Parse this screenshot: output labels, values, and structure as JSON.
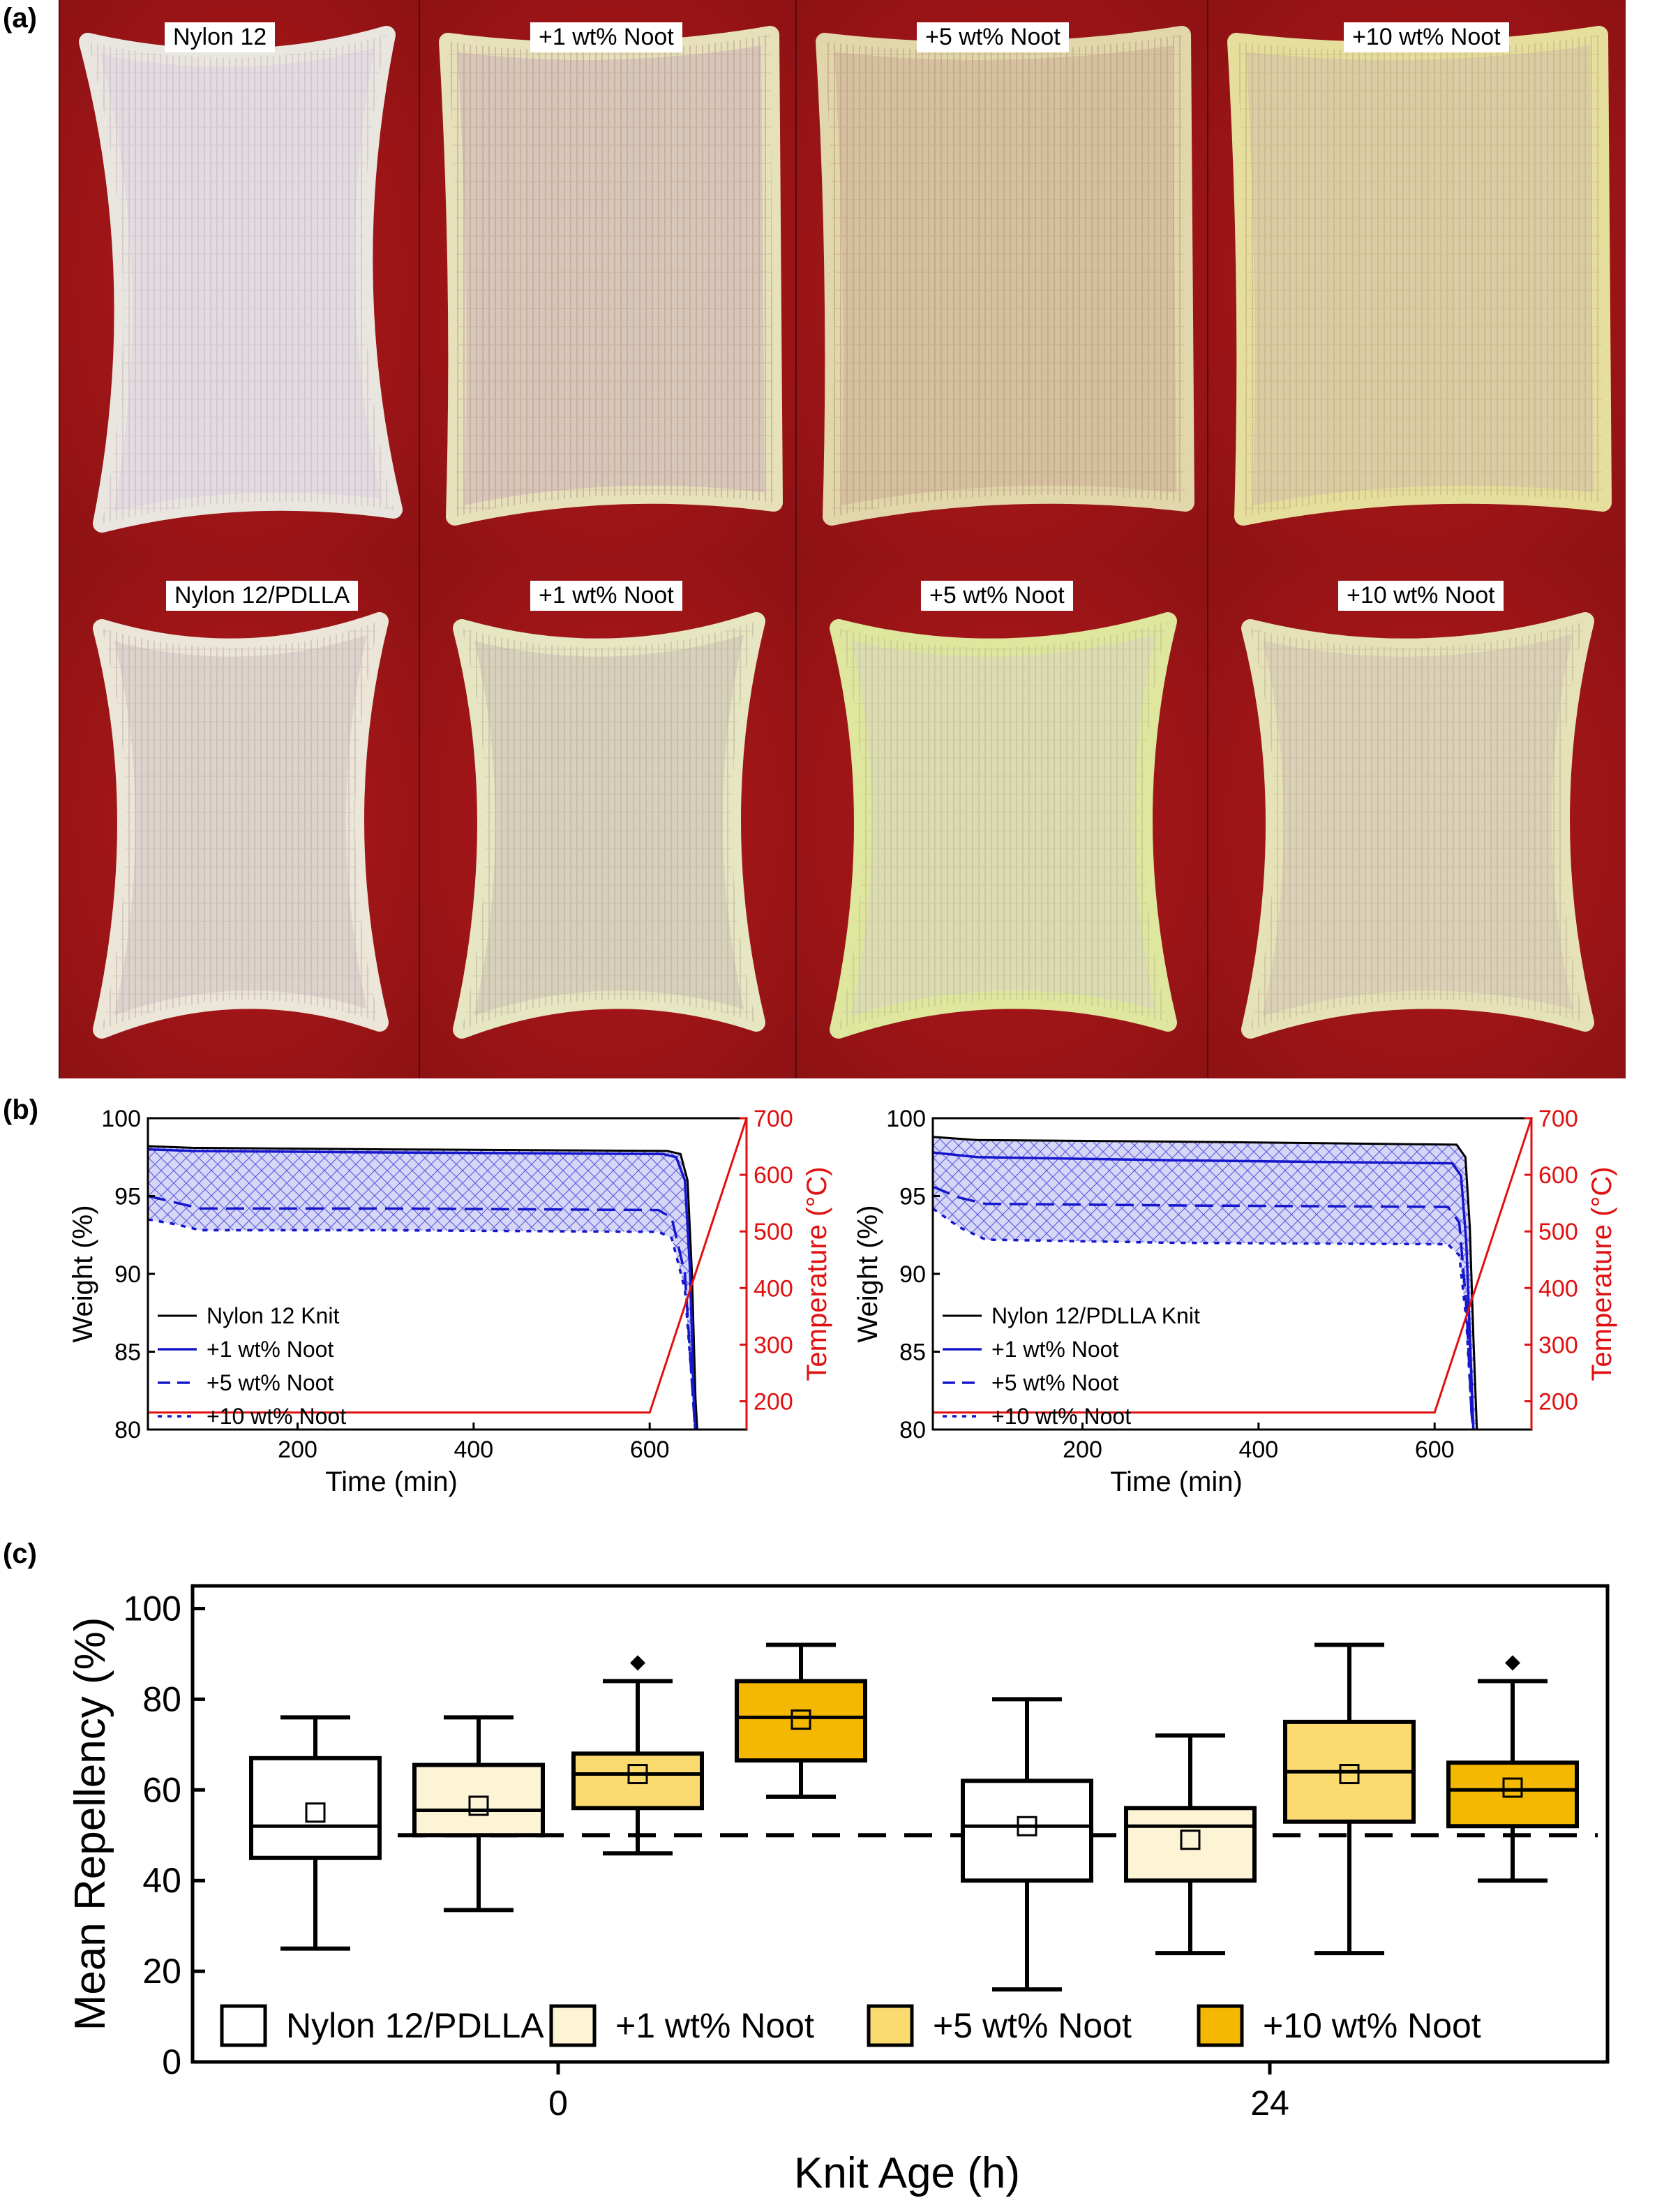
{
  "panel_labels": {
    "a": "(a)",
    "b": "(b)",
    "c": "(c)"
  },
  "photos": {
    "top_row": [
      {
        "label": "Nylon 12",
        "shape": "hourglass",
        "fabric": "#e2dbe0",
        "grid": "#c8b9c4",
        "edge": "#e9e6e0"
      },
      {
        "label": "+1 wt% Noot",
        "shape": "rect",
        "fabric": "#d8c6b8",
        "grid": "#b89f90",
        "edge": "#e6e1bb"
      },
      {
        "label": "+5 wt% Noot",
        "shape": "rect",
        "fabric": "#d5c0a0",
        "grid": "#b89d7c",
        "edge": "#e2d6ab"
      },
      {
        "label": "+10 wt% Noot",
        "shape": "rect",
        "fabric": "#dccca3",
        "grid": "#c4b084",
        "edge": "#e6de9c"
      }
    ],
    "bottom_row": [
      {
        "label": "Nylon 12/PDLLA",
        "shape": "bone",
        "fabric": "#ddd2cc",
        "grid": "#bfb1ac",
        "edge": "#ece6d8"
      },
      {
        "label": "+1 wt% Noot",
        "shape": "bone",
        "fabric": "#d7d0ba",
        "grid": "#b8b29d",
        "edge": "#e6e6c3"
      },
      {
        "label": "+5 wt% Noot",
        "shape": "bone",
        "fabric": "#dcdcb2",
        "grid": "#bcbd92",
        "edge": "#dfe69e"
      },
      {
        "label": "+10 wt% Noot",
        "shape": "bone",
        "fabric": "#dad1b6",
        "grid": "#bdb398",
        "edge": "#e6e2b8"
      }
    ],
    "background_color": "#8e1214"
  },
  "chart_data": [
    {
      "type": "line",
      "panel": "b-left",
      "xlabel": "Time (min)",
      "ylabel": "Weight (%)",
      "y2label": "Temperature (°C)",
      "xlim": [
        30,
        710
      ],
      "ylim": [
        80,
        100
      ],
      "y2lim": [
        150,
        700
      ],
      "xticks": [
        200,
        400,
        600
      ],
      "yticks": [
        80,
        85,
        90,
        95,
        100
      ],
      "y2ticks": [
        200,
        300,
        400,
        500,
        600,
        700
      ],
      "legend": [
        "Nylon 12 Knit",
        "+1 wt% Noot",
        "+5 wt% Noot",
        "+10 wt% Noot"
      ],
      "series": [
        {
          "name": "Nylon 12 Knit",
          "style": "solid-black",
          "x": [
            30,
            80,
            300,
            620,
            635,
            643,
            648,
            652,
            656
          ],
          "y": [
            98.2,
            98.1,
            98.0,
            97.9,
            97.7,
            96,
            90,
            82,
            78
          ]
        },
        {
          "name": "+1 wt% Noot",
          "style": "solid-blue",
          "x": [
            30,
            80,
            300,
            615,
            630,
            640,
            646,
            650,
            654
          ],
          "y": [
            98.0,
            97.9,
            97.8,
            97.7,
            97.5,
            96,
            90,
            82,
            78
          ]
        },
        {
          "name": "+5 wt% Noot",
          "style": "dash-blue",
          "x": [
            30,
            60,
            90,
            300,
            610,
            625,
            640,
            648,
            654
          ],
          "y": [
            95.0,
            94.6,
            94.2,
            94.2,
            94.1,
            93.6,
            90,
            83,
            78
          ]
        },
        {
          "name": "+10 wt% Noot",
          "style": "dot-blue",
          "x": [
            30,
            60,
            90,
            300,
            610,
            625,
            640,
            648,
            654
          ],
          "y": [
            93.5,
            93.2,
            92.8,
            92.8,
            92.7,
            92.3,
            89,
            83,
            78
          ]
        },
        {
          "name": "Temperature",
          "style": "red",
          "axis": "y2",
          "x": [
            30,
            600,
            710
          ],
          "y": [
            180,
            180,
            700
          ]
        }
      ]
    },
    {
      "type": "line",
      "panel": "b-right",
      "xlabel": "Time (min)",
      "ylabel": "Weight (%)",
      "y2label": "Temperature (°C)",
      "xlim": [
        30,
        710
      ],
      "ylim": [
        80,
        100
      ],
      "y2lim": [
        150,
        700
      ],
      "xticks": [
        200,
        400,
        600
      ],
      "yticks": [
        80,
        85,
        90,
        95,
        100
      ],
      "y2ticks": [
        200,
        300,
        400,
        500,
        600,
        700
      ],
      "legend": [
        "Nylon 12/PDLLA Knit",
        "+1 wt% Noot",
        "+5 wt% Noot",
        "+10 wt% Noot"
      ],
      "series": [
        {
          "name": "Nylon 12/PDLLA Knit",
          "style": "solid-black",
          "x": [
            30,
            80,
            300,
            625,
            635,
            640,
            644,
            648,
            652
          ],
          "y": [
            98.8,
            98.6,
            98.5,
            98.3,
            97.5,
            93,
            86,
            80,
            78
          ]
        },
        {
          "name": "+1 wt% Noot",
          "style": "solid-blue",
          "x": [
            30,
            80,
            300,
            620,
            630,
            636,
            640,
            644,
            648
          ],
          "y": [
            97.8,
            97.5,
            97.3,
            97.1,
            96.3,
            92,
            86,
            80,
            78
          ]
        },
        {
          "name": "+5 wt% Noot",
          "style": "dash-blue",
          "x": [
            30,
            60,
            90,
            300,
            615,
            628,
            636,
            642,
            648
          ],
          "y": [
            95.6,
            94.9,
            94.5,
            94.4,
            94.3,
            93.3,
            88,
            81,
            78
          ]
        },
        {
          "name": "+10 wt% Noot",
          "style": "dot-blue",
          "x": [
            30,
            60,
            90,
            300,
            615,
            628,
            636,
            642,
            648
          ],
          "y": [
            94.2,
            93.0,
            92.2,
            92.0,
            91.9,
            91.2,
            87,
            81,
            78
          ]
        },
        {
          "name": "Temperature",
          "style": "red",
          "axis": "y2",
          "x": [
            30,
            600,
            710
          ],
          "y": [
            180,
            180,
            700
          ]
        }
      ]
    },
    {
      "type": "box",
      "panel": "c",
      "xlabel": "Knit Age (h)",
      "ylabel": "Mean Repellency (%)",
      "ylim": [
        0,
        105
      ],
      "yticks": [
        0,
        20,
        40,
        60,
        80,
        100
      ],
      "categories": [
        "0",
        "24"
      ],
      "reference_line": 50,
      "legend": [
        "Nylon 12/PDLLA",
        "+1 wt% Noot",
        "+5 wt% Noot",
        "+10 wt% Noot"
      ],
      "series_colors": [
        "#ffffff",
        "#fdf4d6",
        "#fbdb6f",
        "#f5b800"
      ],
      "groups": [
        {
          "category": "0",
          "boxes": [
            {
              "name": "Nylon 12/PDLLA",
              "whisker_low": 25,
              "q1": 45,
              "median": 52,
              "q3": 67,
              "whisker_high": 76,
              "mean": 55,
              "outliers": []
            },
            {
              "name": "+1 wt% Noot",
              "whisker_low": 33.5,
              "q1": 50,
              "median": 55.5,
              "q3": 65.5,
              "whisker_high": 76,
              "mean": 56.5,
              "outliers": []
            },
            {
              "name": "+5 wt% Noot",
              "whisker_low": 46,
              "q1": 56,
              "median": 63.5,
              "q3": 68,
              "whisker_high": 84,
              "mean": 63.5,
              "outliers": [
                88
              ]
            },
            {
              "name": "+10 wt% Noot",
              "whisker_low": 58.5,
              "q1": 66.5,
              "median": 76,
              "q3": 84,
              "whisker_high": 92,
              "mean": 75.5,
              "outliers": []
            }
          ]
        },
        {
          "category": "24",
          "boxes": [
            {
              "name": "Nylon 12/PDLLA",
              "whisker_low": 16,
              "q1": 40,
              "median": 52,
              "q3": 62,
              "whisker_high": 80,
              "mean": 52,
              "outliers": []
            },
            {
              "name": "+1 wt% Noot",
              "whisker_low": 24,
              "q1": 40,
              "median": 52,
              "q3": 56,
              "whisker_high": 72,
              "mean": 49,
              "outliers": []
            },
            {
              "name": "+5 wt% Noot",
              "whisker_low": 24,
              "q1": 53,
              "median": 64,
              "q3": 75,
              "whisker_high": 92,
              "mean": 63.5,
              "outliers": []
            },
            {
              "name": "+10 wt% Noot",
              "whisker_low": 40,
              "q1": 52,
              "median": 60,
              "q3": 66,
              "whisker_high": 84,
              "mean": 60.5,
              "outliers": [
                88
              ]
            }
          ]
        }
      ]
    }
  ]
}
